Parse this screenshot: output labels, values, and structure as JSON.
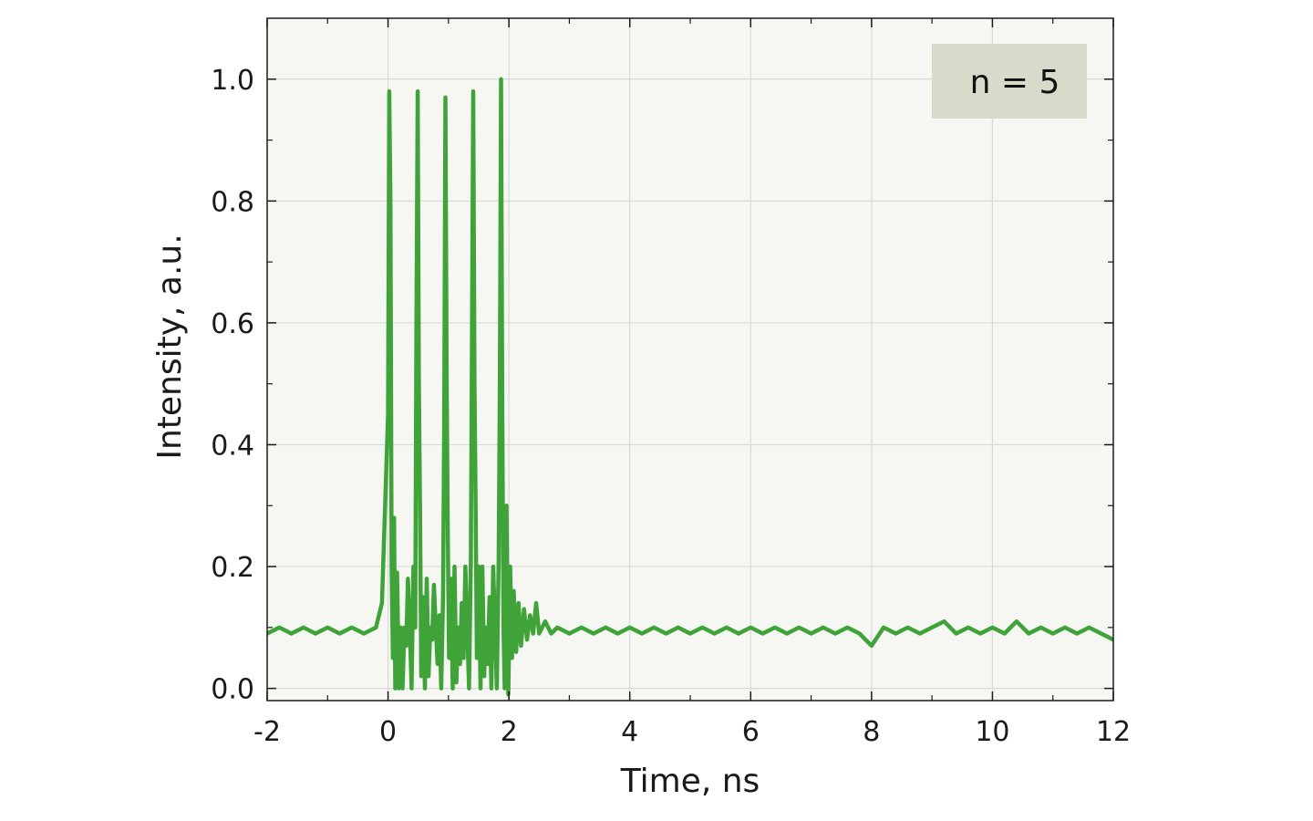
{
  "chart_data": {
    "type": "line",
    "title": "",
    "xlabel": "Time, ns",
    "ylabel": "Intensity, a.u.",
    "xlim": [
      -2,
      12
    ],
    "ylim": [
      -0.02,
      1.1
    ],
    "x_ticks": [
      -2,
      0,
      2,
      4,
      6,
      8,
      10,
      12
    ],
    "x_tick_labels": [
      "-2",
      "0",
      "2",
      "4",
      "6",
      "8",
      "10",
      "12"
    ],
    "y_ticks": [
      0.0,
      0.2,
      0.4,
      0.6,
      0.8,
      1.0
    ],
    "y_tick_labels": [
      "0.0",
      "0.2",
      "0.4",
      "0.6",
      "0.8",
      "1.0"
    ],
    "grid": true,
    "annotation": {
      "text": "n = 5",
      "placement": "top-right"
    },
    "colors": {
      "line": "#3fa33a",
      "plot_bg": "#f6f7f2",
      "grid": "#d9d9d9",
      "annotation_bg": "#d9dbca"
    },
    "series": [
      {
        "x": [
          -2.0,
          -1.8,
          -1.6,
          -1.4,
          -1.2,
          -1.0,
          -0.8,
          -0.6,
          -0.4,
          -0.2,
          -0.1,
          0.0,
          0.02,
          0.04,
          0.06,
          0.08,
          0.1,
          0.12,
          0.15,
          0.18,
          0.21,
          0.24,
          0.27,
          0.3,
          0.33,
          0.36,
          0.39,
          0.42,
          0.45,
          0.47,
          0.49,
          0.51,
          0.53,
          0.55,
          0.58,
          0.61,
          0.64,
          0.67,
          0.7,
          0.73,
          0.76,
          0.79,
          0.82,
          0.85,
          0.88,
          0.91,
          0.93,
          0.95,
          0.97,
          0.99,
          1.01,
          1.04,
          1.07,
          1.1,
          1.13,
          1.16,
          1.19,
          1.22,
          1.25,
          1.28,
          1.31,
          1.34,
          1.37,
          1.39,
          1.41,
          1.43,
          1.45,
          1.47,
          1.5,
          1.53,
          1.56,
          1.59,
          1.62,
          1.65,
          1.68,
          1.71,
          1.74,
          1.77,
          1.8,
          1.83,
          1.85,
          1.87,
          1.89,
          1.91,
          1.93,
          1.96,
          1.99,
          2.02,
          2.05,
          2.08,
          2.12,
          2.16,
          2.2,
          2.25,
          2.3,
          2.35,
          2.4,
          2.45,
          2.5,
          2.6,
          2.7,
          2.8,
          3.0,
          3.2,
          3.4,
          3.6,
          3.8,
          4.0,
          4.2,
          4.4,
          4.6,
          4.8,
          5.0,
          5.2,
          5.4,
          5.6,
          5.8,
          6.0,
          6.2,
          6.4,
          6.6,
          6.8,
          7.0,
          7.2,
          7.4,
          7.6,
          7.8,
          8.0,
          8.2,
          8.4,
          8.6,
          8.8,
          9.0,
          9.2,
          9.4,
          9.6,
          9.8,
          10.0,
          10.2,
          10.4,
          10.6,
          10.8,
          11.0,
          11.2,
          11.4,
          11.6,
          11.8,
          12.0
        ],
        "values": [
          0.09,
          0.1,
          0.09,
          0.1,
          0.09,
          0.1,
          0.09,
          0.1,
          0.09,
          0.1,
          0.14,
          0.45,
          0.98,
          0.8,
          0.2,
          0.05,
          0.28,
          0.0,
          0.19,
          0.0,
          0.1,
          0.0,
          0.1,
          0.07,
          0.18,
          0.1,
          0.0,
          0.2,
          0.1,
          0.6,
          0.98,
          0.5,
          0.29,
          0.02,
          0.15,
          0.0,
          0.18,
          0.02,
          0.1,
          0.08,
          0.17,
          0.1,
          0.04,
          0.12,
          0.0,
          0.15,
          0.45,
          0.97,
          0.5,
          0.24,
          0.05,
          0.18,
          0.0,
          0.2,
          0.01,
          0.1,
          0.04,
          0.14,
          0.05,
          0.2,
          0.1,
          0.0,
          0.21,
          0.6,
          0.98,
          0.5,
          0.29,
          0.05,
          0.2,
          0.0,
          0.2,
          0.02,
          0.1,
          0.04,
          0.15,
          0.0,
          0.2,
          0.1,
          0.0,
          0.21,
          0.5,
          1.0,
          0.45,
          0.1,
          0.0,
          0.3,
          -0.01,
          0.2,
          0.05,
          0.16,
          0.06,
          0.14,
          0.07,
          0.13,
          0.08,
          0.12,
          0.09,
          0.14,
          0.09,
          0.11,
          0.09,
          0.1,
          0.09,
          0.1,
          0.09,
          0.1,
          0.09,
          0.1,
          0.09,
          0.1,
          0.09,
          0.1,
          0.09,
          0.1,
          0.09,
          0.1,
          0.09,
          0.1,
          0.09,
          0.1,
          0.09,
          0.1,
          0.09,
          0.1,
          0.09,
          0.1,
          0.09,
          0.07,
          0.1,
          0.09,
          0.1,
          0.09,
          0.1,
          0.11,
          0.09,
          0.1,
          0.09,
          0.1,
          0.09,
          0.11,
          0.09,
          0.1,
          0.09,
          0.1,
          0.09,
          0.1,
          0.09,
          0.08
        ]
      }
    ]
  }
}
